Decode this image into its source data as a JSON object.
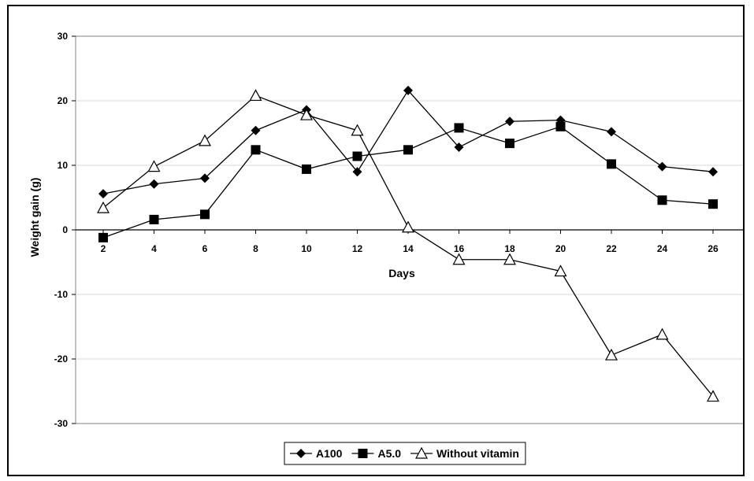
{
  "chart_data": {
    "type": "line",
    "xlabel": "Days",
    "ylabel": "Weight gain (g)",
    "ylim": [
      -30,
      30
    ],
    "yticks": [
      30,
      20,
      10,
      0,
      -10,
      -20,
      -30
    ],
    "x": [
      2,
      4,
      6,
      8,
      10,
      12,
      14,
      16,
      18,
      20,
      22,
      24,
      26
    ],
    "grid": true,
    "legend_position": "bottom",
    "series": [
      {
        "name": "A100",
        "marker": "diamond",
        "values": [
          5.6,
          7.1,
          8.0,
          15.4,
          18.6,
          9.0,
          21.6,
          12.8,
          16.8,
          17.0,
          15.2,
          9.8,
          9.0
        ]
      },
      {
        "name": "A5.0",
        "marker": "square",
        "values": [
          -1.2,
          1.6,
          2.4,
          12.4,
          9.4,
          11.4,
          12.4,
          15.8,
          13.4,
          16.0,
          10.2,
          4.6,
          4.0
        ]
      },
      {
        "name": "Without vitamin",
        "marker": "triangle-open",
        "values": [
          3.4,
          9.8,
          13.8,
          20.8,
          17.8,
          15.4,
          0.4,
          -4.6,
          -4.6,
          -6.4,
          -19.4,
          -16.2,
          -25.8
        ]
      }
    ]
  }
}
